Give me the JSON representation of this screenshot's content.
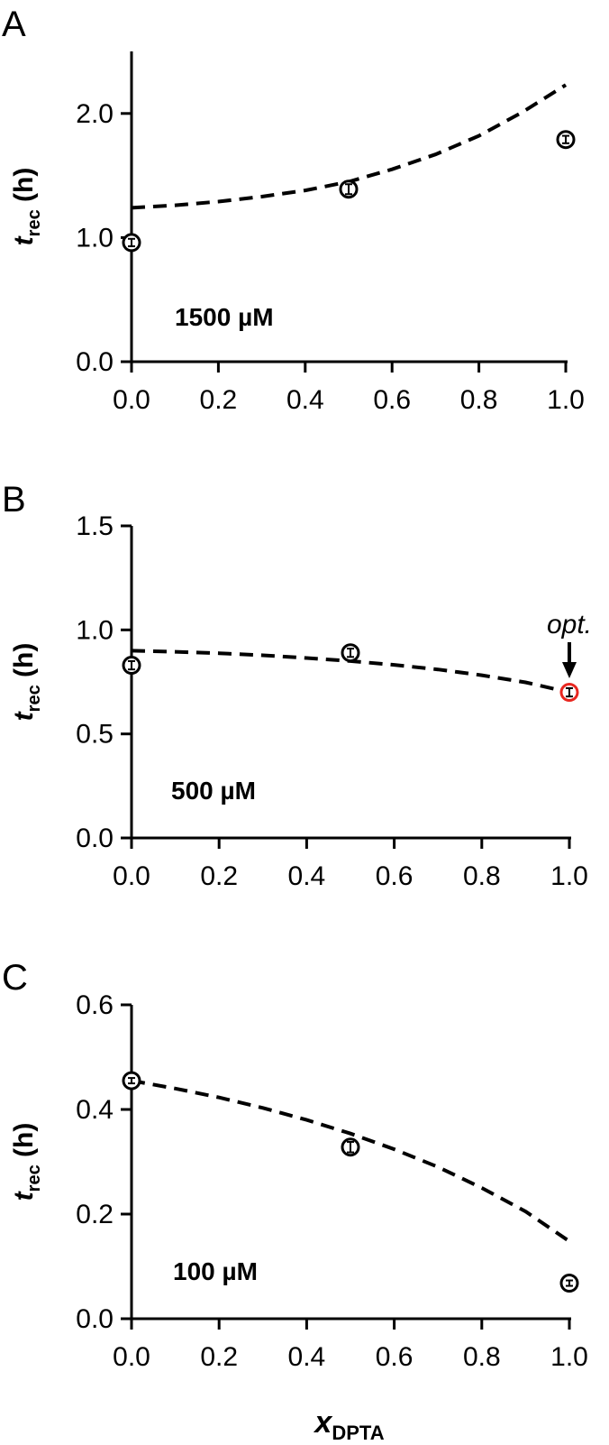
{
  "chart_data": [
    {
      "type": "scatter",
      "panel": "A",
      "annotation": "1500 µM",
      "ylabel": {
        "main": "t",
        "sub": "rec",
        "unit": " (h)"
      },
      "xlabel": null,
      "xlim": [
        0,
        1
      ],
      "ylim": [
        0,
        2.5
      ],
      "xticks": [
        0,
        0.2,
        0.4,
        0.6,
        0.8,
        1.0
      ],
      "xtick_labels": [
        "0.0",
        "0.2",
        "0.4",
        "0.6",
        "0.8",
        "1.0"
      ],
      "yticks": [
        0,
        1,
        2
      ],
      "ytick_labels": [
        "0.0",
        "1.0",
        "2.0"
      ],
      "points": [
        {
          "x": 0.0,
          "y": 0.96,
          "err": 0.03,
          "highlight": false
        },
        {
          "x": 0.5,
          "y": 1.39,
          "err": 0.04,
          "highlight": false
        },
        {
          "x": 1.0,
          "y": 1.79,
          "err": 0.03,
          "highlight": false
        }
      ],
      "fit": {
        "style": "dashed",
        "x": [
          0,
          0.1,
          0.2,
          0.3,
          0.4,
          0.5,
          0.6,
          0.7,
          0.8,
          0.9,
          1.0
        ],
        "y": [
          1.24,
          1.26,
          1.29,
          1.33,
          1.38,
          1.45,
          1.55,
          1.67,
          1.82,
          2.01,
          2.23
        ]
      },
      "opt_marker": null
    },
    {
      "type": "scatter",
      "panel": "B",
      "annotation": "500 µM",
      "ylabel": {
        "main": "t",
        "sub": "rec",
        "unit": " (h)"
      },
      "xlabel": null,
      "xlim": [
        0,
        1
      ],
      "ylim": [
        0,
        1.5
      ],
      "xticks": [
        0,
        0.2,
        0.4,
        0.6,
        0.8,
        1.0
      ],
      "xtick_labels": [
        "0.0",
        "0.2",
        "0.4",
        "0.6",
        "0.8",
        "1.0"
      ],
      "yticks": [
        0,
        0.5,
        1.0,
        1.5
      ],
      "ytick_labels": [
        "0.0",
        "0.5",
        "1.0",
        "1.5"
      ],
      "points": [
        {
          "x": 0.0,
          "y": 0.83,
          "err": 0.02,
          "highlight": false
        },
        {
          "x": 0.5,
          "y": 0.89,
          "err": 0.02,
          "highlight": false
        },
        {
          "x": 1.0,
          "y": 0.7,
          "err": 0.02,
          "highlight": true
        }
      ],
      "fit": {
        "style": "dashed",
        "x": [
          0,
          0.1,
          0.2,
          0.3,
          0.4,
          0.5,
          0.6,
          0.7,
          0.8,
          0.9,
          1.0
        ],
        "y": [
          0.9,
          0.895,
          0.888,
          0.878,
          0.865,
          0.85,
          0.832,
          0.81,
          0.782,
          0.748,
          0.7
        ]
      },
      "opt_marker": {
        "label": "opt.",
        "x": 1.0
      }
    },
    {
      "type": "scatter",
      "panel": "C",
      "annotation": "100 µM",
      "ylabel": {
        "main": "t",
        "sub": "rec",
        "unit": " (h)"
      },
      "xlabel": {
        "main": "x",
        "sub": "DPTA"
      },
      "xlim": [
        0,
        1
      ],
      "ylim": [
        0,
        0.6
      ],
      "xticks": [
        0,
        0.2,
        0.4,
        0.6,
        0.8,
        1.0
      ],
      "xtick_labels": [
        "0.0",
        "0.2",
        "0.4",
        "0.6",
        "0.8",
        "1.0"
      ],
      "yticks": [
        0,
        0.2,
        0.4,
        0.6
      ],
      "ytick_labels": [
        "0.0",
        "0.2",
        "0.4",
        "0.6"
      ],
      "points": [
        {
          "x": 0.0,
          "y": 0.455,
          "err": 0.005,
          "highlight": false
        },
        {
          "x": 0.5,
          "y": 0.328,
          "err": 0.01,
          "highlight": false
        },
        {
          "x": 1.0,
          "y": 0.068,
          "err": 0.005,
          "highlight": false
        }
      ],
      "fit": {
        "style": "dashed",
        "x": [
          0,
          0.1,
          0.2,
          0.3,
          0.4,
          0.5,
          0.6,
          0.7,
          0.8,
          0.9,
          1.0
        ],
        "y": [
          0.455,
          0.44,
          0.423,
          0.403,
          0.38,
          0.354,
          0.324,
          0.29,
          0.25,
          0.205,
          0.148
        ]
      },
      "opt_marker": null
    }
  ],
  "colors": {
    "axis": "#000000",
    "marker": "#000000",
    "highlight": "#e8261f",
    "fit": "#000000"
  }
}
